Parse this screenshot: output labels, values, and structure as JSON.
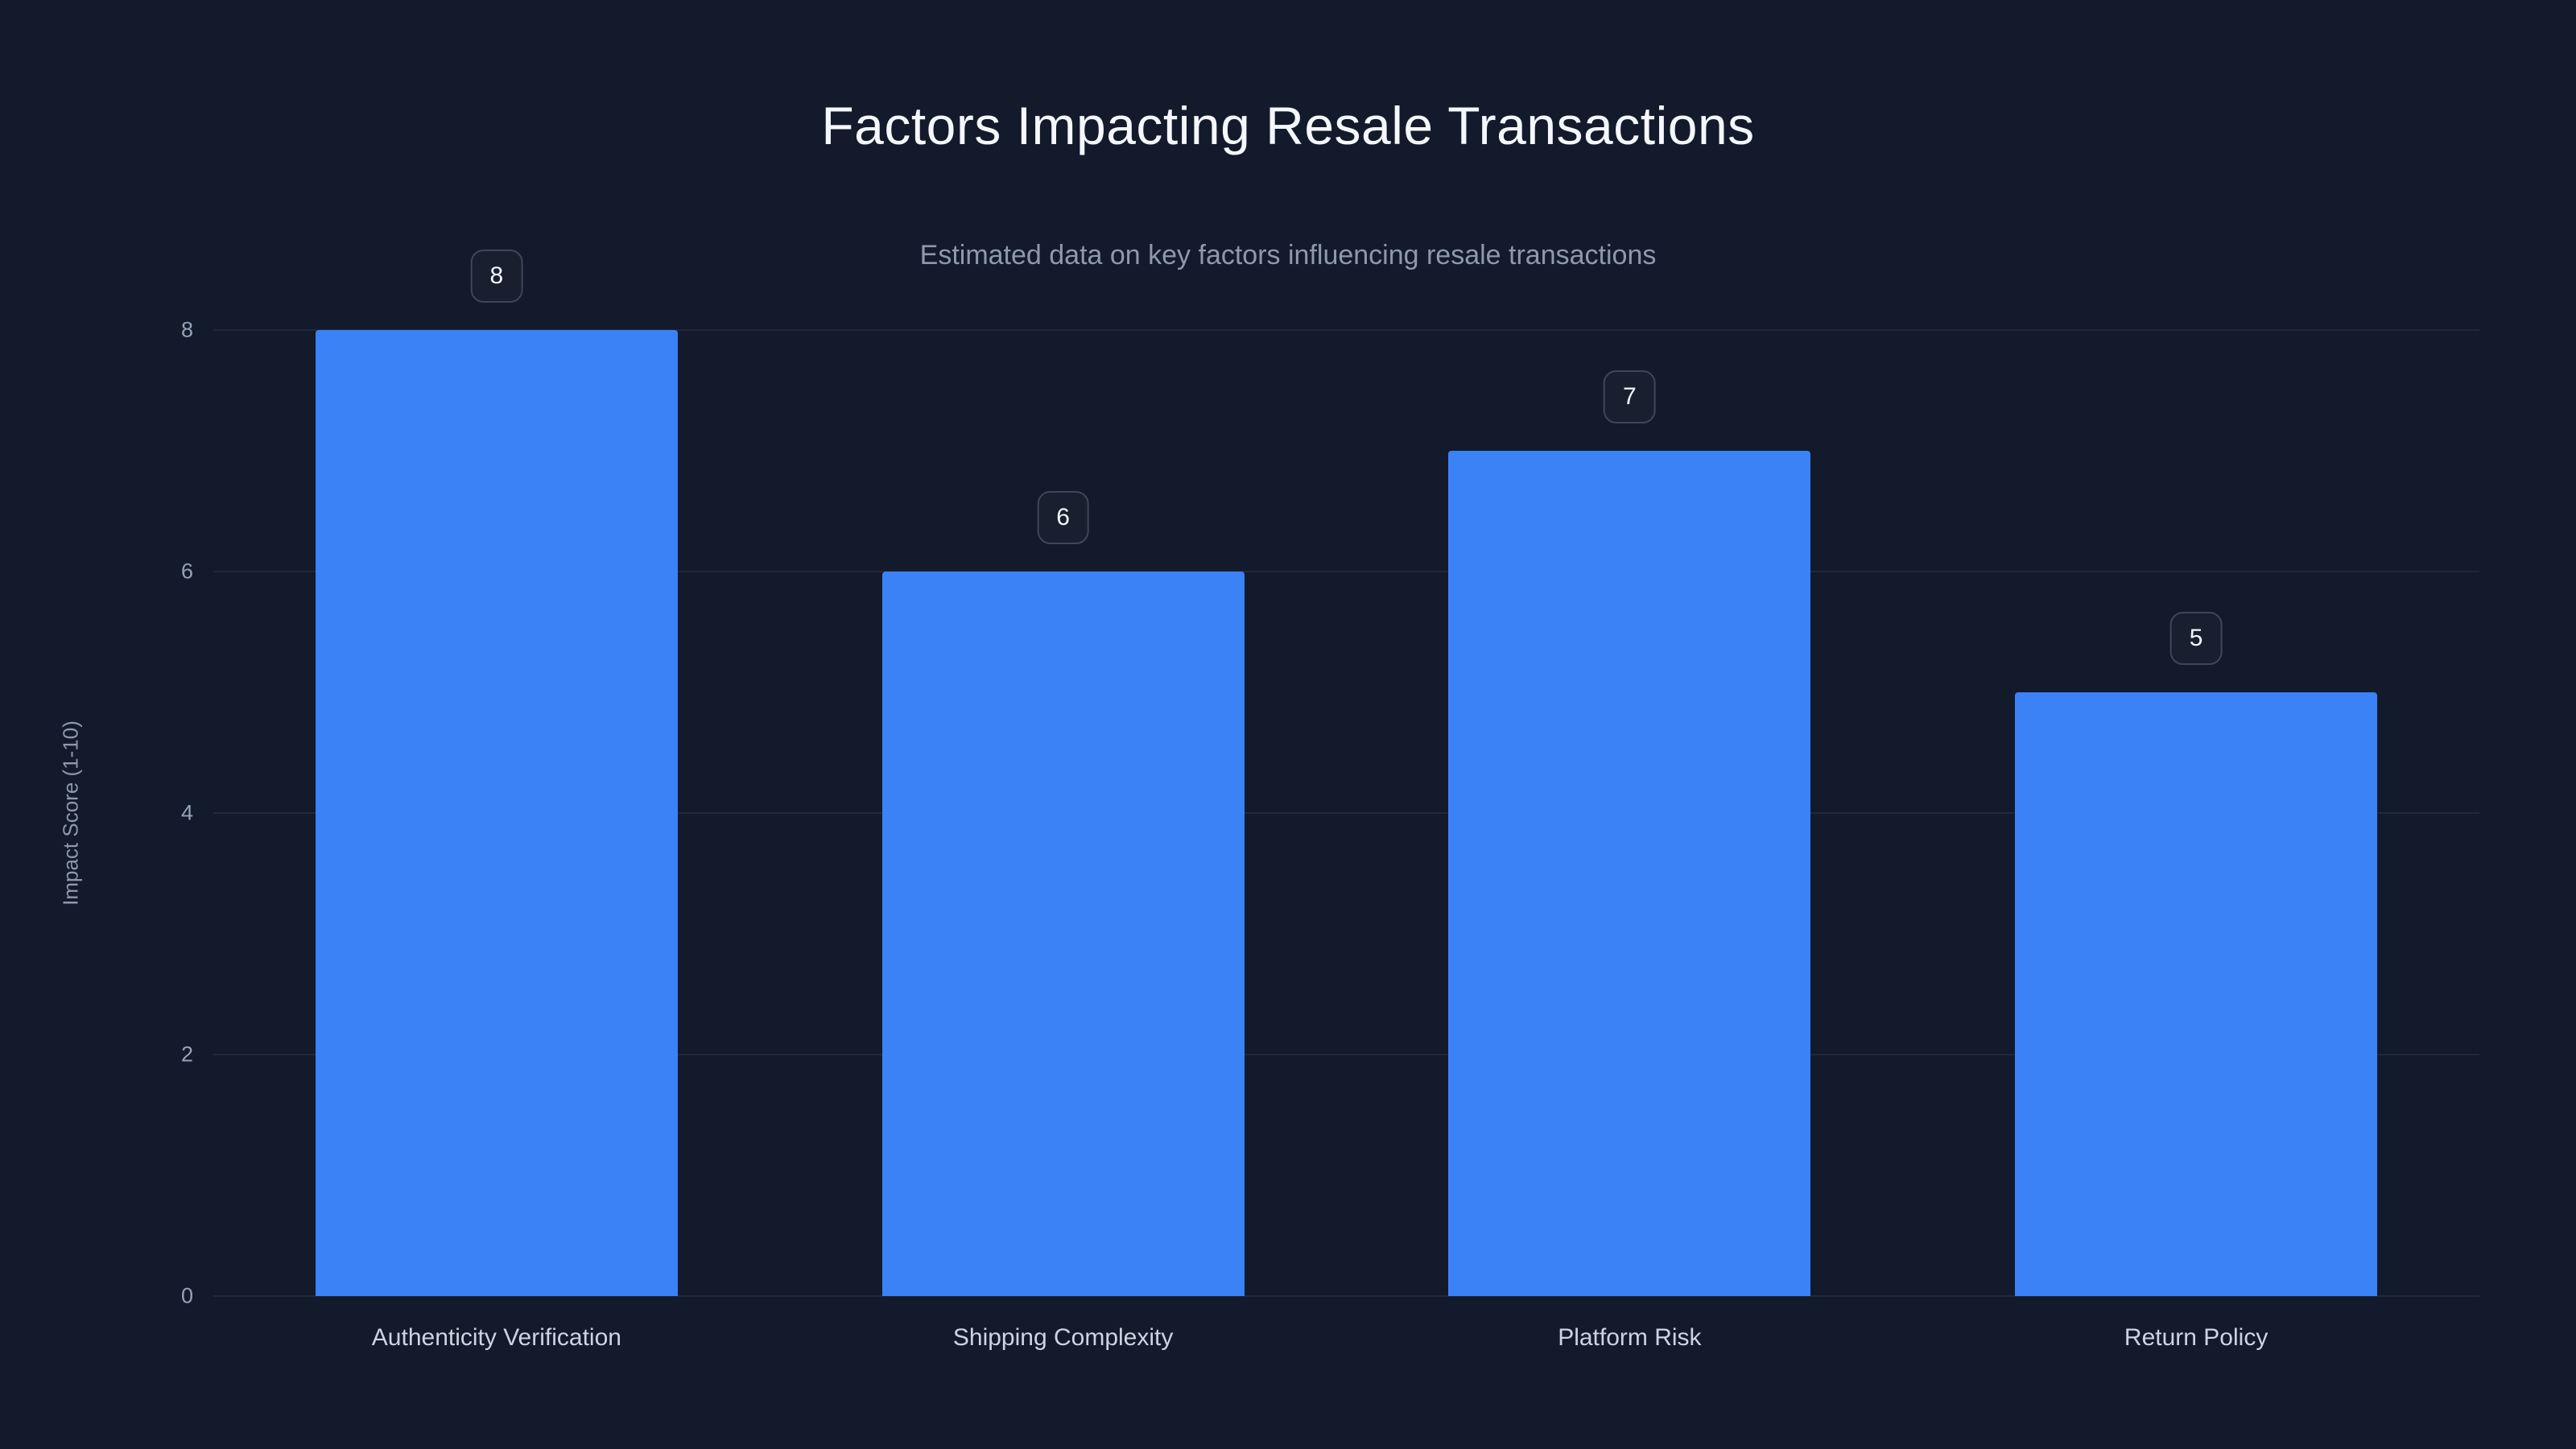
{
  "chart": {
    "title": "Factors Impacting Resale Transactions",
    "subtitle": "Estimated data on key factors influencing resale transactions"
  },
  "chart_data": {
    "type": "bar",
    "title": "Factors Impacting Resale Transactions",
    "subtitle": "Estimated data on key factors influencing resale transactions",
    "categories": [
      "Authenticity Verification",
      "Shipping Complexity",
      "Platform Risk",
      "Return Policy"
    ],
    "values": [
      8,
      6,
      7,
      5
    ],
    "value_labels": [
      "8",
      "6",
      "7",
      "5"
    ],
    "xlabel": "",
    "ylabel": "Impact Score (1-10)",
    "ylim": [
      0,
      8
    ],
    "yticks": [
      0,
      2,
      4,
      6,
      8
    ],
    "grid": "on",
    "legend": "none",
    "bar_color": "#3b82f6",
    "background_color": "#131a2b",
    "badge_border_color": "#3d4759",
    "badge_text_color": "#f4f7fb"
  }
}
